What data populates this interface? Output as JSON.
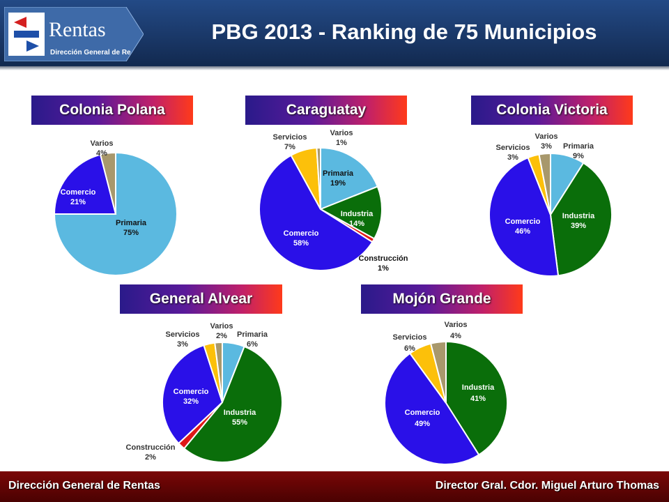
{
  "header": {
    "title": "PBG  2013 - Ranking de 75 Municipios"
  },
  "logo": {
    "brand": "Rentas",
    "subtitle": "Dirección General de Re"
  },
  "footer": {
    "left": "Dirección General de Rentas",
    "right": "Director Gral.  Cdor. Miguel Arturo Thomas"
  },
  "colors": {
    "Primaria": "#5bb9e0",
    "Industria": "#0a6e0a",
    "Construcción": "#e01818",
    "Comercio": "#2a10e8",
    "Servicios": "#fcc00a",
    "Varios": "#a8986c"
  },
  "chart_data": [
    {
      "type": "pie",
      "title": "Colonia Polana",
      "slices": [
        {
          "name": "Primaria",
          "pct": "75%",
          "value": 75
        },
        {
          "name": "Comercio",
          "pct": "21%",
          "value": 21
        },
        {
          "name": "Varios",
          "pct": "4%",
          "value": 4
        }
      ]
    },
    {
      "type": "pie",
      "title": "Caraguatay",
      "slices": [
        {
          "name": "Primaria",
          "pct": "19%",
          "value": 19
        },
        {
          "name": "Industria",
          "pct": "14%",
          "value": 14
        },
        {
          "name": "Construcción",
          "pct": "1%",
          "value": 1
        },
        {
          "name": "Comercio",
          "pct": "58%",
          "value": 58
        },
        {
          "name": "Servicios",
          "pct": "7%",
          "value": 7
        },
        {
          "name": "Varios",
          "pct": "1%",
          "value": 1
        }
      ]
    },
    {
      "type": "pie",
      "title": "Colonia Victoria",
      "slices": [
        {
          "name": "Primaria",
          "pct": "9%",
          "value": 9
        },
        {
          "name": "Industria",
          "pct": "39%",
          "value": 39
        },
        {
          "name": "Comercio",
          "pct": "46%",
          "value": 46
        },
        {
          "name": "Servicios",
          "pct": "3%",
          "value": 3
        },
        {
          "name": "Varios",
          "pct": "3%",
          "value": 3
        }
      ]
    },
    {
      "type": "pie",
      "title": "General Alvear",
      "slices": [
        {
          "name": "Primaria",
          "pct": "6%",
          "value": 6
        },
        {
          "name": "Industria",
          "pct": "55%",
          "value": 55
        },
        {
          "name": "Construcción",
          "pct": "2%",
          "value": 2
        },
        {
          "name": "Comercio",
          "pct": "32%",
          "value": 32
        },
        {
          "name": "Servicios",
          "pct": "3%",
          "value": 3
        },
        {
          "name": "Varios",
          "pct": "2%",
          "value": 2
        }
      ]
    },
    {
      "type": "pie",
      "title": "Mojón Grande",
      "slices": [
        {
          "name": "Industria",
          "pct": "41%",
          "value": 41
        },
        {
          "name": "Comercio",
          "pct": "49%",
          "value": 49
        },
        {
          "name": "Servicios",
          "pct": "6%",
          "value": 6
        },
        {
          "name": "Varios",
          "pct": "4%",
          "value": 4
        }
      ]
    }
  ]
}
